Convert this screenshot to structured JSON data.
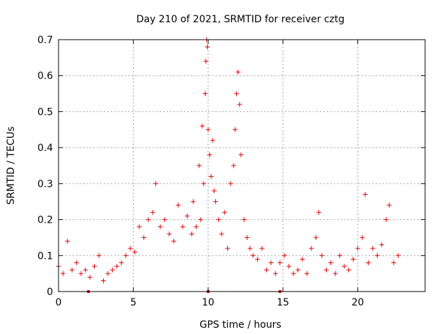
{
  "chart_data": {
    "type": "scatter",
    "title": "Day 210 of 2021, SRMTID for receiver cztg",
    "xlabel": "GPS time / hours",
    "ylabel": "SRMTID / TECUs",
    "xlim": [
      0,
      24.5
    ],
    "ylim": [
      0,
      0.7
    ],
    "xticks": [
      0,
      5,
      10,
      15,
      20
    ],
    "yticks": [
      0,
      0.1,
      0.2,
      0.3,
      0.4,
      0.5,
      0.6,
      0.7
    ],
    "xtick_labels": [
      "0",
      "5",
      "10",
      "15",
      "20"
    ],
    "ytick_labels": [
      "0",
      "0.1",
      "0.2",
      "0.3",
      "0.4",
      "0.5",
      "0.6",
      "0.7"
    ],
    "grid": true,
    "marker": "+",
    "color": "#e00000",
    "series": [
      {
        "name": "SRMTID",
        "x": [
          0.0,
          0.3,
          0.6,
          0.9,
          1.2,
          1.5,
          1.8,
          2.1,
          2.4,
          2.7,
          3.0,
          3.3,
          3.6,
          3.9,
          4.2,
          4.5,
          4.8,
          5.1,
          5.4,
          5.7,
          6.0,
          6.3,
          6.5,
          6.8,
          7.1,
          7.4,
          7.7,
          8.0,
          8.3,
          8.6,
          8.9,
          9.0,
          9.2,
          9.4,
          9.5,
          9.6,
          9.7,
          9.8,
          9.85,
          9.9,
          9.95,
          10.0,
          10.1,
          10.2,
          10.3,
          10.4,
          10.5,
          10.7,
          10.9,
          11.1,
          11.3,
          11.5,
          11.7,
          11.8,
          11.9,
          12.0,
          12.1,
          12.2,
          12.4,
          12.6,
          12.8,
          13.0,
          13.3,
          13.6,
          13.9,
          14.2,
          14.5,
          14.8,
          15.1,
          15.4,
          15.7,
          16.0,
          16.3,
          16.6,
          16.9,
          17.2,
          17.4,
          17.6,
          17.9,
          18.2,
          18.5,
          18.8,
          19.1,
          19.4,
          19.7,
          20.0,
          20.3,
          20.5,
          20.7,
          21.0,
          21.3,
          21.6,
          21.9,
          22.1,
          22.4,
          22.7
        ],
        "y": [
          0.07,
          0.05,
          0.14,
          0.06,
          0.08,
          0.05,
          0.06,
          0.04,
          0.07,
          0.1,
          0.03,
          0.05,
          0.06,
          0.07,
          0.08,
          0.1,
          0.12,
          0.11,
          0.18,
          0.15,
          0.2,
          0.22,
          0.3,
          0.18,
          0.2,
          0.16,
          0.14,
          0.24,
          0.18,
          0.21,
          0.16,
          0.25,
          0.18,
          0.35,
          0.2,
          0.46,
          0.3,
          0.55,
          0.64,
          0.7,
          0.68,
          0.45,
          0.38,
          0.32,
          0.42,
          0.28,
          0.25,
          0.2,
          0.16,
          0.22,
          0.12,
          0.3,
          0.35,
          0.45,
          0.55,
          0.61,
          0.52,
          0.38,
          0.2,
          0.15,
          0.12,
          0.1,
          0.09,
          0.12,
          0.06,
          0.08,
          0.05,
          0.08,
          0.1,
          0.07,
          0.05,
          0.06,
          0.09,
          0.05,
          0.12,
          0.15,
          0.22,
          0.1,
          0.06,
          0.08,
          0.05,
          0.1,
          0.07,
          0.06,
          0.09,
          0.12,
          0.15,
          0.27,
          0.08,
          0.12,
          0.1,
          0.13,
          0.2,
          0.24,
          0.08,
          0.1
        ]
      }
    ],
    "axis_markers": {
      "x": [
        2.0,
        10.0,
        14.8
      ],
      "y": [
        0
      ]
    }
  }
}
